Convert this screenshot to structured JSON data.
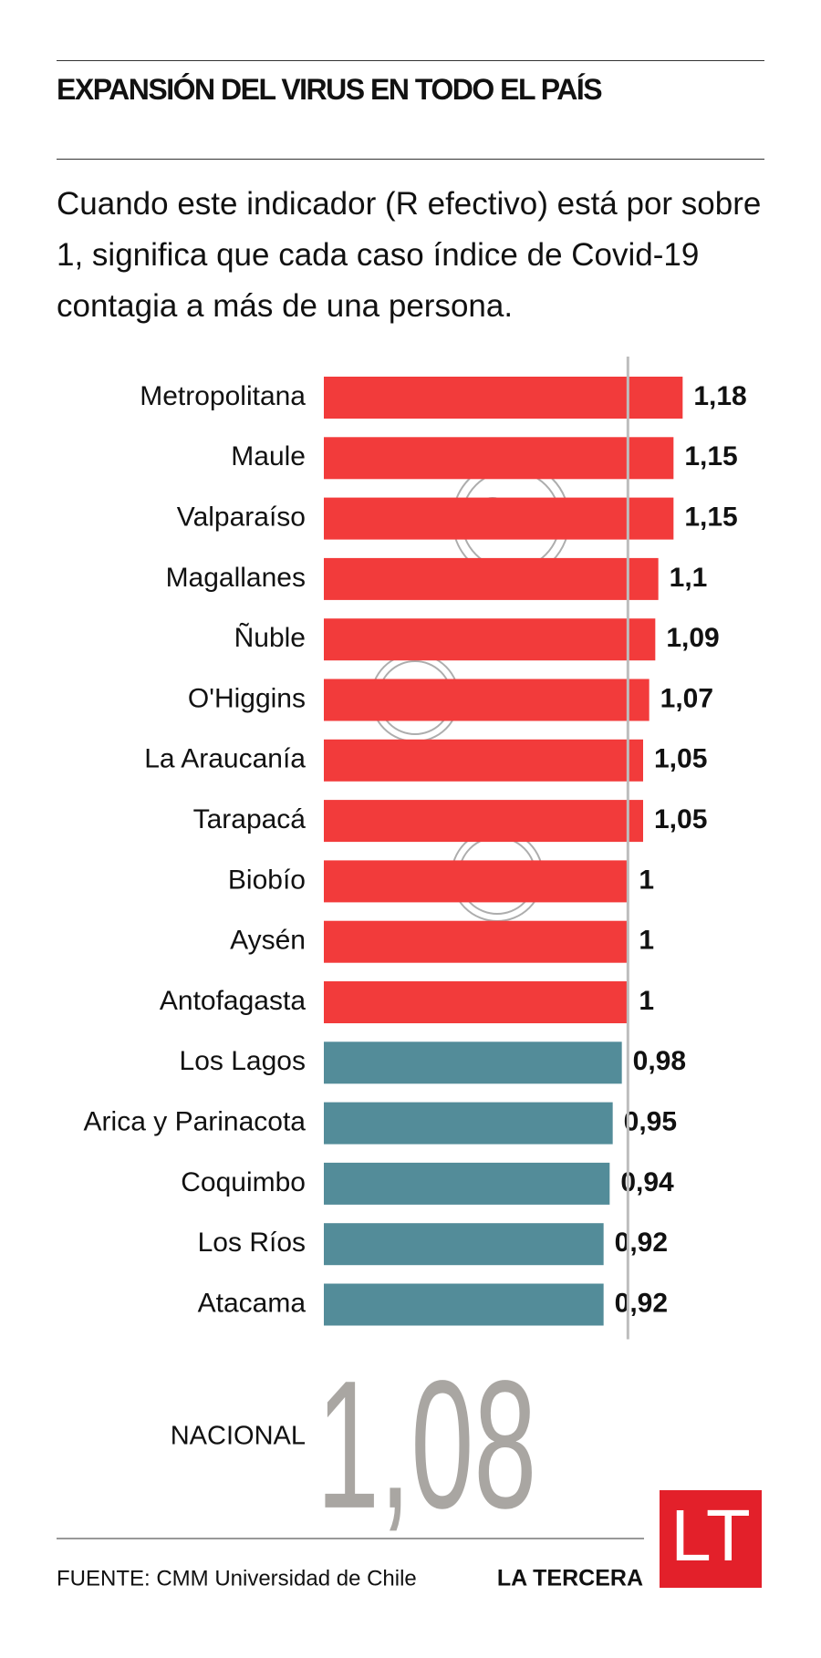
{
  "chart_data": {
    "type": "bar",
    "orientation": "horizontal",
    "title": "EXPANSIÓN DEL VIRUS EN TODO EL PAÍS",
    "subtitle": "Cuando este indicador (R efectivo) está por sobre 1, significa que cada caso índice de Covid-19 contagia a más de una persona.",
    "categories": [
      "Metropolitana",
      "Maule",
      "Valparaíso",
      "Magallanes",
      "Ñuble",
      "O'Higgins",
      "La Araucanía",
      "Tarapacá",
      "Biobío",
      "Aysén",
      "Antofagasta",
      "Los Lagos",
      "Arica y Parinacota",
      "Coquimbo",
      "Los Ríos",
      "Atacama"
    ],
    "values": [
      1.18,
      1.15,
      1.15,
      1.1,
      1.09,
      1.07,
      1.05,
      1.05,
      1,
      1,
      1,
      0.98,
      0.95,
      0.94,
      0.92,
      0.92
    ],
    "value_labels": [
      "1,18",
      "1,15",
      "1,15",
      "1,1",
      "1,09",
      "1,07",
      "1,05",
      "1,05",
      "1",
      "1",
      "1",
      "0,98",
      "0,95",
      "0,94",
      "0,92",
      "0,92"
    ],
    "colors": [
      "#f23b3b",
      "#f23b3b",
      "#f23b3b",
      "#f23b3b",
      "#f23b3b",
      "#f23b3b",
      "#f23b3b",
      "#f23b3b",
      "#f23b3b",
      "#f23b3b",
      "#f23b3b",
      "#538c99",
      "#538c99",
      "#538c99",
      "#538c99",
      "#538c99"
    ],
    "xlim": [
      0,
      1.2
    ],
    "reference_line": 1,
    "national_label": "NACIONAL",
    "national_value": "1,08",
    "source": "FUENTE: CMM Universidad de Chile",
    "brand": "LA TERCERA",
    "logo": "LT"
  }
}
